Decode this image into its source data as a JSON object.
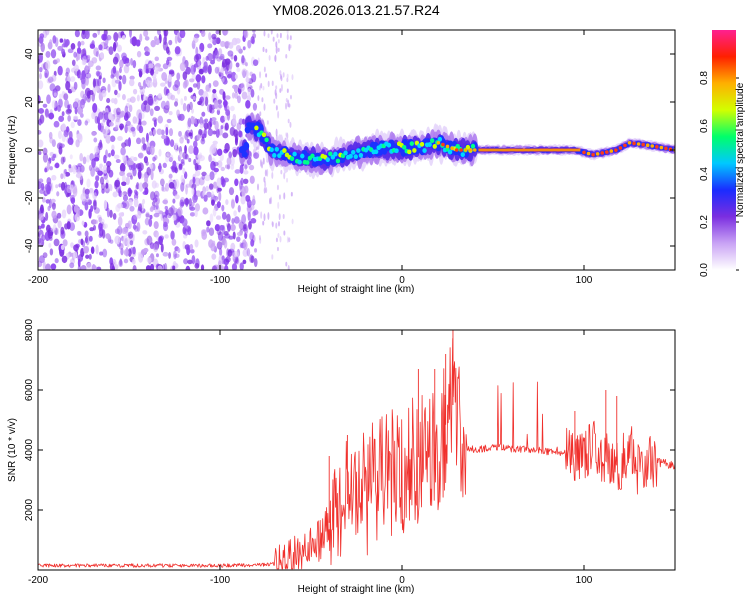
{
  "title": "YM08.2026.013.21.57.R24",
  "chart_data": [
    {
      "type": "heatmap",
      "title": "YM08.2026.013.21.57.R24",
      "xlabel": "Height of straight line (km)",
      "ylabel": "Frequency (Hz)",
      "xlim": [
        -200,
        150
      ],
      "ylim": [
        -50,
        50
      ],
      "xticks": [
        -200,
        -100,
        0,
        100
      ],
      "yticks": [
        -40,
        -20,
        0,
        20,
        40
      ],
      "colorbar": {
        "label": "Normalized spectral amplitude",
        "range": [
          0,
          1
        ],
        "ticks": [
          "0.0",
          "0.2",
          "0.4",
          "0.6",
          "0.8"
        ],
        "colors": [
          "#ffffff",
          "#c9a3f5",
          "#7b2ee0",
          "#1a2cff",
          "#00c8ff",
          "#00ff6a",
          "#d2ff00",
          "#ffb000",
          "#ff2000",
          "#ff2090"
        ]
      },
      "ridge": [
        {
          "x": -85,
          "y": 10
        },
        {
          "x": -78,
          "y": 8
        },
        {
          "x": -72,
          "y": 0
        },
        {
          "x": -60,
          "y": -3
        },
        {
          "x": -45,
          "y": -4
        },
        {
          "x": -35,
          "y": -3
        },
        {
          "x": -20,
          "y": 0
        },
        {
          "x": -5,
          "y": 1
        },
        {
          "x": 10,
          "y": 1
        },
        {
          "x": 20,
          "y": 3
        },
        {
          "x": 30,
          "y": 0
        },
        {
          "x": 45,
          "y": 0
        },
        {
          "x": 95,
          "y": 0
        },
        {
          "x": 105,
          "y": -2
        },
        {
          "x": 118,
          "y": 0
        },
        {
          "x": 125,
          "y": 3
        },
        {
          "x": 135,
          "y": 2
        },
        {
          "x": 150,
          "y": 0
        }
      ]
    },
    {
      "type": "line",
      "xlabel": "Height of straight line (km)",
      "ylabel": "SNR (10 * v/v)",
      "xlim": [
        -200,
        150
      ],
      "ylim": [
        0,
        8000
      ],
      "xticks": [
        -200,
        -100,
        0,
        100
      ],
      "yticks": [
        2000,
        4000,
        6000,
        8000
      ],
      "color": "#f0302c",
      "series": [
        {
          "name": "SNR",
          "x": [
            -200,
            -150,
            -100,
            -75,
            -65,
            -55,
            -45,
            -38,
            -30,
            -20,
            -10,
            0,
            10,
            20,
            25,
            28,
            32,
            40,
            50,
            60,
            70,
            80,
            90,
            100,
            105,
            110,
            115,
            120,
            125,
            130,
            135,
            140,
            150
          ],
          "y": [
            150,
            150,
            150,
            170,
            250,
            600,
            1000,
            1800,
            2200,
            2600,
            3000,
            3400,
            3800,
            4200,
            5000,
            5500,
            4200,
            4000,
            4100,
            4050,
            4000,
            3950,
            3900,
            3800,
            4200,
            3500,
            3800,
            3500,
            4200,
            3300,
            3700,
            3600,
            3500
          ]
        }
      ],
      "peaks": [
        {
          "x": 28,
          "y": 8000
        },
        {
          "x": 24,
          "y": 7200
        },
        {
          "x": 18,
          "y": 6700
        },
        {
          "x": 9,
          "y": 6700
        },
        {
          "x": -30,
          "y": 4500
        },
        {
          "x": -40,
          "y": 3800
        },
        {
          "x": 112,
          "y": 6000
        },
        {
          "x": 118,
          "y": 5800
        },
        {
          "x": 95,
          "y": 5300
        }
      ]
    }
  ]
}
